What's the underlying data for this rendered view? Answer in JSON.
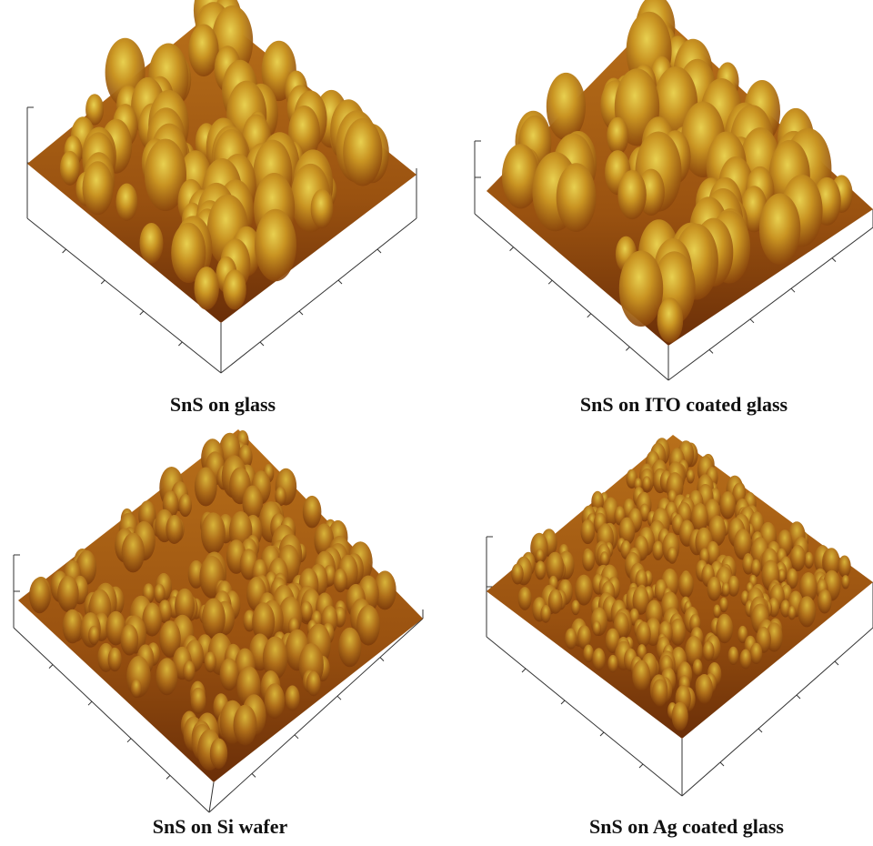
{
  "panels": [
    {
      "caption": "SnS on glass"
    },
    {
      "caption": "SnS on ITO coated glass"
    },
    {
      "caption": "SnS on Si wafer"
    },
    {
      "caption": "SnS on Ag coated glass"
    }
  ]
}
